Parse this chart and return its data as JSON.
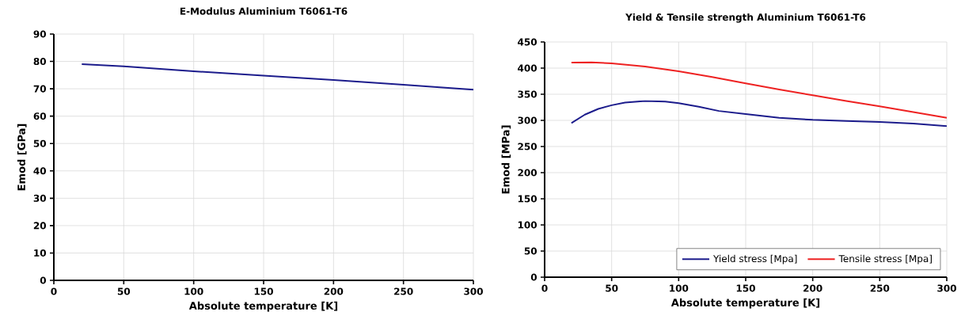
{
  "chart_data": [
    {
      "type": "line",
      "title": "E-Modulus Aluminium T6061-T6",
      "xlabel": "Absolute temperature [K]",
      "ylabel": "Emod [GPa]",
      "xlim": [
        0,
        300
      ],
      "xticks": [
        0,
        50,
        100,
        150,
        200,
        250,
        300
      ],
      "ylim": [
        0,
        90
      ],
      "yticks": [
        0,
        10,
        20,
        30,
        40,
        50,
        60,
        70,
        80,
        90
      ],
      "grid": true,
      "legend": false,
      "marker": "none",
      "line_style": "solid",
      "series": [
        {
          "color": "#1c1c8c",
          "x": [
            20,
            50,
            100,
            150,
            200,
            250,
            300
          ],
          "values": [
            79,
            78.2,
            76.4,
            74.8,
            73.2,
            71.5,
            69.7
          ]
        }
      ]
    },
    {
      "type": "line",
      "title": "Yield & Tensile strength Aluminium T6061-T6",
      "xlabel": "Absolute temperature [K]",
      "ylabel": "Emod [MPa]",
      "xlim": [
        0,
        300
      ],
      "xticks": [
        0,
        50,
        100,
        150,
        200,
        250,
        300
      ],
      "ylim": [
        0,
        450
      ],
      "yticks": [
        0,
        50,
        100,
        150,
        200,
        250,
        300,
        350,
        400,
        450
      ],
      "grid": true,
      "legend": "bottom right",
      "marker": "none",
      "line_style": "solid",
      "series": [
        {
          "name": "Yield stress [Mpa]",
          "color": "#1c1c8c",
          "x": [
            20,
            30,
            40,
            50,
            60,
            75,
            90,
            100,
            115,
            130,
            150,
            175,
            200,
            225,
            250,
            275,
            300
          ],
          "values": [
            295,
            311,
            322,
            329,
            334,
            337,
            336,
            333,
            326,
            318,
            312,
            305,
            301,
            299,
            297,
            294,
            289
          ]
        },
        {
          "name": "Tensile stress [Mpa]",
          "color": "#ee2222",
          "x": [
            20,
            35,
            50,
            75,
            100,
            125,
            150,
            175,
            200,
            225,
            250,
            275,
            300
          ],
          "values": [
            410.5,
            411,
            409,
            403,
            394,
            383,
            371,
            359,
            348,
            337,
            327,
            316,
            305
          ]
        }
      ]
    }
  ]
}
